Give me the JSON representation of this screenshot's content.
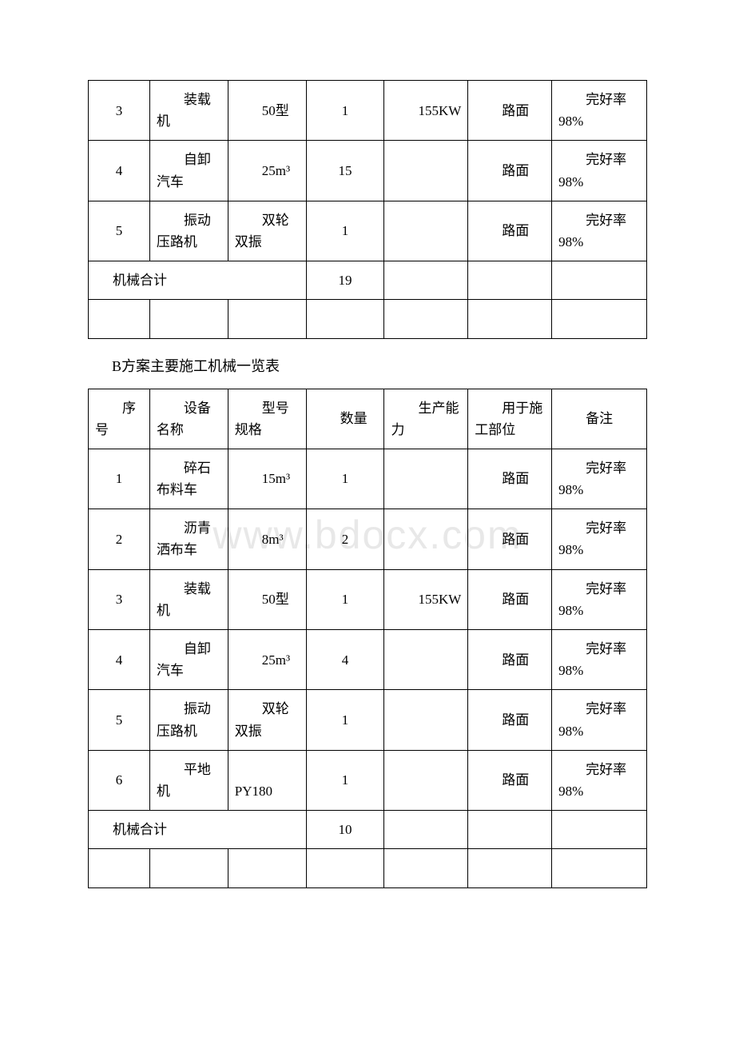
{
  "watermark": "www.bdocx.com",
  "tableA": {
    "rows": [
      {
        "no": "3",
        "name": "装载机",
        "spec": "50型",
        "qty": "1",
        "cap": "155KW",
        "part": "路面",
        "note": "完好率98%"
      },
      {
        "no": "4",
        "name": "自卸汽车",
        "spec": "25m³",
        "qty": "15",
        "cap": "",
        "part": "路面",
        "note": "完好率98%"
      },
      {
        "no": "5",
        "name": "振动压路机",
        "spec": "双轮双振",
        "qty": "1",
        "cap": "",
        "part": "路面",
        "note": "完好率98%"
      }
    ],
    "totalLabel": "机械合计",
    "totalQty": "19"
  },
  "caption": "B方案主要施工机械一览表",
  "tableB": {
    "headers": {
      "h1": "序号",
      "h2": "设备名称",
      "h3": "型号规格",
      "h4": "数量",
      "h5": "生产能力",
      "h6": "用于施工部位",
      "h7": "备注"
    },
    "rows": [
      {
        "no": "1",
        "name": "碎石布料车",
        "spec": "15m³",
        "qty": "1",
        "cap": "",
        "part": "路面",
        "note": "完好率98%"
      },
      {
        "no": "2",
        "name": "沥青洒布车",
        "spec": "8m³",
        "qty": "2",
        "cap": "",
        "part": "路面",
        "note": "完好率98%"
      },
      {
        "no": "3",
        "name": "装载机",
        "spec": "50型",
        "qty": "1",
        "cap": "155KW",
        "part": "路面",
        "note": "完好率98%"
      },
      {
        "no": "4",
        "name": "自卸汽车",
        "spec": "25m³",
        "qty": "4",
        "cap": "",
        "part": "路面",
        "note": "完好率98%"
      },
      {
        "no": "5",
        "name": "振动压路机",
        "spec": "双轮双振",
        "qty": "1",
        "cap": "",
        "part": "路面",
        "note": "完好率98%"
      },
      {
        "no": "6",
        "name": "平地机",
        "spec": "PY180",
        "qty": "1",
        "cap": "",
        "part": "路面",
        "note": "完好率98%"
      }
    ],
    "totalLabel": "机械合计",
    "totalQty": "10"
  },
  "colors": {
    "text": "#000000",
    "border": "#000000",
    "background": "#ffffff",
    "watermark": "#e8e8e8"
  },
  "typography": {
    "cell_fontsize": 17,
    "caption_fontsize": 18,
    "watermark_fontsize": 50
  }
}
